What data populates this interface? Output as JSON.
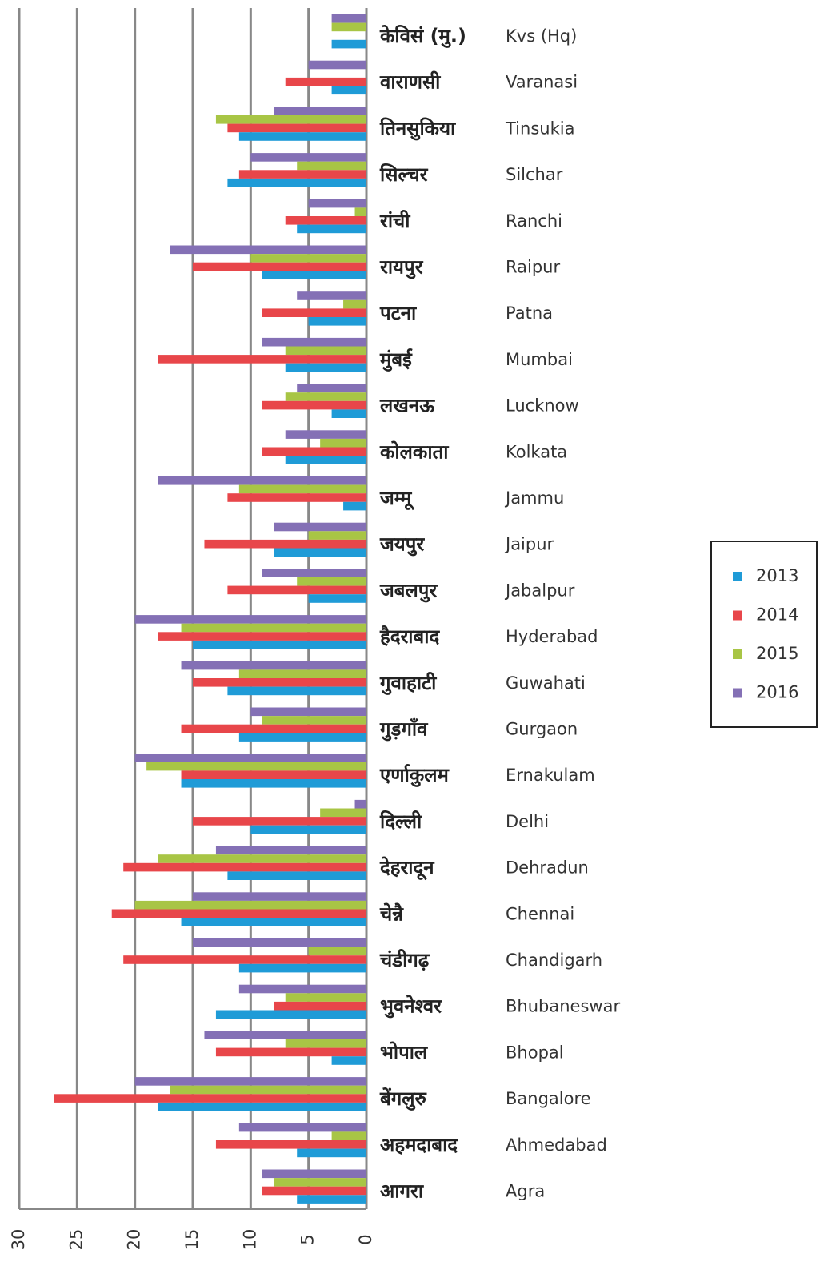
{
  "chart_data": {
    "type": "barh",
    "categories": [
      "Kvs (Hq)",
      "Varanasi",
      "Tinsukia",
      "Silchar",
      "Ranchi",
      "Raipur",
      "Patna",
      "Mumbai",
      "Lucknow",
      "Kolkata",
      "Jammu",
      "Jaipur",
      "Jabalpur",
      "Hyderabad",
      "Guwahati",
      "Gurgaon",
      "Ernakulam",
      "Delhi",
      "Dehradun",
      "Chennai",
      "Chandigarh",
      "Bhubaneswar",
      "Bhopal",
      "Bangalore",
      "Ahmedabad",
      "Agra"
    ],
    "categories_hi": [
      "केविसं (मु.)",
      "वाराणसी",
      "तिनसुकिया",
      "सिल्चर",
      "रांची",
      "रायपुर",
      "पटना",
      "मुंबई",
      "लखनऊ",
      "कोलकाता",
      "जम्मू",
      "जयपुर",
      "जबलपुर",
      "हैदराबाद",
      "गुवाहाटी",
      "गुड़गाँव",
      "एर्णाकुलम",
      "दिल्ली",
      "देहरादून",
      "चेन्नै",
      "चंडीगढ़",
      "भुवनेश्वर",
      "भोपाल",
      "बेंगलुरु",
      "अहमदाबाद",
      "आगरा"
    ],
    "series": [
      {
        "name": "2013",
        "color": "#1f9bd7",
        "values": [
          3,
          3,
          11,
          12,
          6,
          9,
          5,
          7,
          3,
          7,
          2,
          8,
          5,
          15,
          12,
          11,
          16,
          10,
          12,
          16,
          11,
          13,
          3,
          18,
          6,
          6
        ]
      },
      {
        "name": "2014",
        "color": "#e8464a",
        "values": [
          0,
          7,
          12,
          11,
          7,
          15,
          9,
          18,
          9,
          9,
          12,
          14,
          12,
          18,
          15,
          16,
          16,
          15,
          21,
          22,
          21,
          8,
          13,
          27,
          13,
          9
        ]
      },
      {
        "name": "2015",
        "color": "#a8c545",
        "values": [
          3,
          0,
          13,
          6,
          1,
          10,
          2,
          7,
          7,
          4,
          11,
          5,
          6,
          16,
          11,
          9,
          19,
          4,
          18,
          20,
          5,
          7,
          7,
          17,
          3,
          8
        ]
      },
      {
        "name": "2016",
        "color": "#8470b5",
        "values": [
          3,
          5,
          8,
          10,
          5,
          17,
          6,
          9,
          6,
          7,
          18,
          8,
          9,
          20,
          16,
          10,
          20,
          1,
          13,
          15,
          15,
          11,
          14,
          20,
          11,
          9
        ]
      }
    ],
    "xlim": [
      0,
      30
    ],
    "xticks": [
      0,
      5,
      10,
      15,
      20,
      25,
      30
    ],
    "grid": true,
    "legend": "right"
  }
}
